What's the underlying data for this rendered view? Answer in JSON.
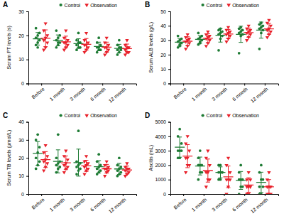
{
  "chart_data": [
    {
      "type": "scatter",
      "title": "A",
      "y_label": "Serum PT levels (s)",
      "categories": [
        "Before",
        "1 month",
        "3 month",
        "6 month",
        "12 month"
      ],
      "ylim": [
        0,
        30
      ],
      "yticks": [
        0,
        10,
        20,
        30
      ],
      "legend": "top",
      "series": [
        {
          "name": "Control",
          "color": "#1e7b34",
          "marker": "circle",
          "values": [
            [
              16,
              17,
              18,
              19,
              20,
              21,
              23,
              15
            ],
            [
              15,
              16,
              17,
              18,
              19,
              20,
              22,
              17
            ],
            [
              14,
              15,
              15,
              16,
              17,
              17,
              18,
              21
            ],
            [
              13,
              14,
              14,
              15,
              15,
              16,
              17,
              19
            ],
            [
              12,
              13,
              14,
              14,
              15,
              15,
              16,
              18
            ]
          ],
          "mean": [
            18.6,
            18,
            16.6,
            15.4,
            14.6
          ],
          "sd": [
            2.6,
            2.2,
            2,
            1.8,
            1.7
          ]
        },
        {
          "name": "Observation",
          "color": "#e8202a",
          "marker": "triangle-down",
          "values": [
            [
              14,
              15,
              17,
              18,
              19,
              20,
              22,
              25
            ],
            [
              14,
              15,
              16,
              17,
              17,
              18,
              19,
              22
            ],
            [
              13,
              14,
              15,
              16,
              16,
              17,
              18,
              21
            ],
            [
              12,
              13,
              14,
              15,
              15,
              16,
              17,
              19
            ],
            [
              12,
              13,
              13,
              14,
              15,
              15,
              16,
              18
            ]
          ],
          "mean": [
            18.8,
            17.3,
            16.3,
            15.1,
            14.5
          ],
          "sd": [
            3.5,
            2.4,
            2.4,
            2.1,
            1.9
          ]
        }
      ]
    },
    {
      "type": "scatter",
      "title": "B",
      "y_label": "Serum ALB levels (g/L)",
      "categories": [
        "Before",
        "1 month",
        "3 month",
        "6 month",
        "12 month"
      ],
      "ylim": [
        0,
        50
      ],
      "yticks": [
        0,
        10,
        20,
        30,
        40,
        50
      ],
      "legend": "top",
      "series": [
        {
          "name": "Control",
          "color": "#1e7b34",
          "marker": "circle",
          "values": [
            [
              25,
              27,
              28,
              29,
              30,
              31,
              33,
              26
            ],
            [
              27,
              29,
              30,
              31,
              32,
              33,
              35,
              28
            ],
            [
              23,
              31,
              33,
              34,
              35,
              36,
              37,
              38
            ],
            [
              21,
              33,
              34,
              35,
              36,
              37,
              38,
              39
            ],
            [
              24,
              35,
              37,
              38,
              39,
              40,
              41,
              42
            ]
          ],
          "mean": [
            28.6,
            30.6,
            33.4,
            34.1,
            37
          ],
          "sd": [
            2.6,
            2.6,
            4.7,
            5.6,
            5.6
          ]
        },
        {
          "name": "Observation",
          "color": "#e8202a",
          "marker": "triangle-down",
          "values": [
            [
              24,
              26,
              28,
              29,
              30,
              31,
              32,
              34
            ],
            [
              26,
              28,
              30,
              31,
              32,
              33,
              34,
              36
            ],
            [
              29,
              31,
              33,
              34,
              35,
              36,
              37,
              39
            ],
            [
              30,
              32,
              34,
              35,
              36,
              37,
              38,
              40
            ],
            [
              32,
              34,
              36,
              37,
              38,
              40,
              42,
              44
            ]
          ],
          "mean": [
            29.3,
            31.3,
            34.3,
            35.3,
            37.9
          ],
          "sd": [
            3.1,
            3.2,
            3.2,
            3.2,
            3.8
          ]
        }
      ]
    },
    {
      "type": "scatter",
      "title": "C",
      "y_label": "Serum TB levels (μmol/L)",
      "categories": [
        "Before",
        "1 month",
        "3 month",
        "6 month",
        "12 month"
      ],
      "ylim": [
        0,
        40
      ],
      "yticks": [
        0,
        10,
        20,
        30,
        40
      ],
      "legend": "top",
      "series": [
        {
          "name": "Control",
          "color": "#1e7b34",
          "marker": "circle",
          "values": [
            [
              14,
              16,
              18,
              20,
              23,
              26,
              30,
              33
            ],
            [
              12,
              14,
              15,
              16,
              17,
              18,
              20,
              33
            ],
            [
              11,
              13,
              14,
              15,
              16,
              17,
              18,
              35
            ],
            [
              11,
              12,
              13,
              14,
              15,
              16,
              18,
              22
            ],
            [
              10,
              11,
              12,
              13,
              14,
              15,
              16,
              20
            ]
          ],
          "mean": [
            22.5,
            18.1,
            17.4,
            15.1,
            13.9
          ],
          "sd": [
            6.6,
            6.4,
            7.5,
            3.4,
            3.1
          ]
        },
        {
          "name": "Observation",
          "color": "#e8202a",
          "marker": "triangle-down",
          "values": [
            [
              13,
              15,
              17,
              18,
              19,
              21,
              23,
              27
            ],
            [
              12,
              14,
              15,
              16,
              17,
              19,
              21,
              24
            ],
            [
              11,
              13,
              14,
              15,
              16,
              17,
              18,
              21
            ],
            [
              10,
              12,
              13,
              14,
              14,
              15,
              16,
              18
            ],
            [
              10,
              11,
              12,
              13,
              14,
              14,
              15,
              17
            ]
          ],
          "mean": [
            19.1,
            17.3,
            15.6,
            14,
            13.3
          ],
          "sd": [
            4.4,
            3.8,
            3.1,
            2.4,
            2.2
          ]
        }
      ]
    },
    {
      "type": "scatter",
      "title": "D",
      "y_label": "Ascitis (mL)",
      "categories": [
        "Before",
        "1 month",
        "3 month",
        "6 month",
        "12 month"
      ],
      "ylim": [
        0,
        5000
      ],
      "yticks": [
        0,
        1000,
        2000,
        3000,
        4000,
        5000
      ],
      "legend": "top",
      "series": [
        {
          "name": "Control",
          "color": "#1e7b34",
          "marker": "circle",
          "values": [
            [
              2500,
              2500,
              3000,
              3000,
              3000,
              3500,
              4000,
              4500
            ],
            [
              1000,
              1500,
              1500,
              2000,
              2000,
              2000,
              2500,
              3000
            ],
            [
              1000,
              1000,
              1500,
              1500,
              1500,
              1500,
              2000,
              2000
            ],
            [
              0,
              500,
              500,
              1000,
              1000,
              1000,
              1500,
              2000
            ],
            [
              0,
              0,
              500,
              500,
              1000,
              1000,
              1500,
              2000
            ]
          ],
          "mean": [
            3250,
            1940,
            1500,
            940,
            810
          ],
          "sd": [
            700,
            620,
            380,
            620,
            700
          ]
        },
        {
          "name": "Observation",
          "color": "#e8202a",
          "marker": "triangle-down",
          "values": [
            [
              1500,
              2000,
              2000,
              2500,
              2500,
              3000,
              3500,
              4000
            ],
            [
              500,
              1000,
              1000,
              1500,
              1500,
              2000,
              2500,
              3000
            ],
            [
              0,
              500,
              1000,
              1000,
              1000,
              1500,
              2000,
              2500
            ],
            [
              0,
              0,
              500,
              500,
              500,
              1000,
              1000,
              1500
            ],
            [
              0,
              0,
              0,
              500,
              500,
              500,
              1000,
              1500
            ]
          ],
          "mean": [
            2625,
            1625,
            1190,
            625,
            500
          ],
          "sd": [
            800,
            800,
            750,
            500,
            500
          ]
        }
      ]
    }
  ]
}
